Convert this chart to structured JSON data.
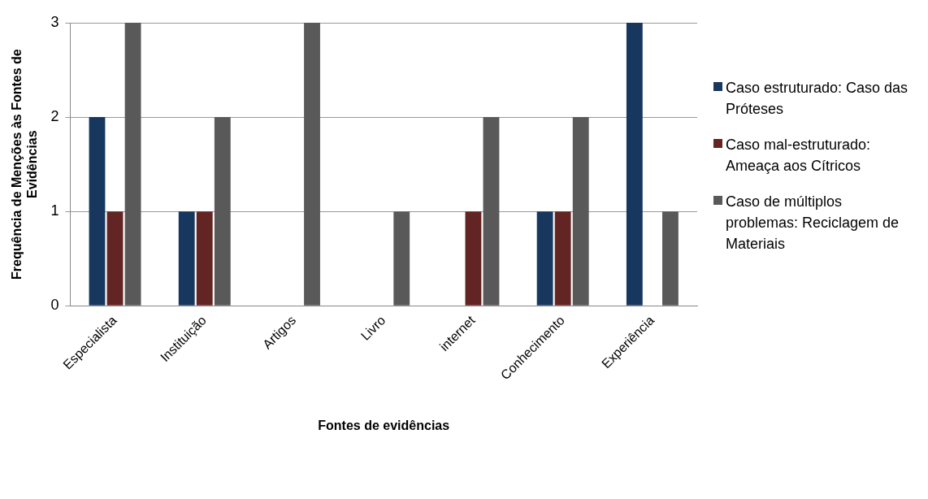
{
  "chart_data": {
    "type": "bar",
    "xlabel": "Fontes de evidências",
    "ylabel": "Frequência de Menções às Fontes de Evidências",
    "categories": [
      "Especialista",
      "Instituição",
      "Artigos",
      "Livro",
      "internet",
      "Conhecimento",
      "Experiência"
    ],
    "series": [
      {
        "name": "Caso estruturado: Caso das Próteses",
        "color": "#17375e",
        "values": [
          2,
          1,
          0,
          0,
          0,
          1,
          3
        ]
      },
      {
        "name": "Caso mal-estruturado: Ameaça aos Cítricos",
        "color": "#632523",
        "values": [
          1,
          1,
          0,
          0,
          1,
          1,
          0
        ]
      },
      {
        "name": "Caso de múltiplos problemas: Reciclagem de Materiais",
        "color": "#595959",
        "values": [
          3,
          2,
          3,
          1,
          2,
          2,
          1
        ]
      }
    ],
    "ylim": [
      0,
      3
    ],
    "yticks": [
      0,
      1,
      2,
      3
    ],
    "grid": "y",
    "legend": "right"
  }
}
